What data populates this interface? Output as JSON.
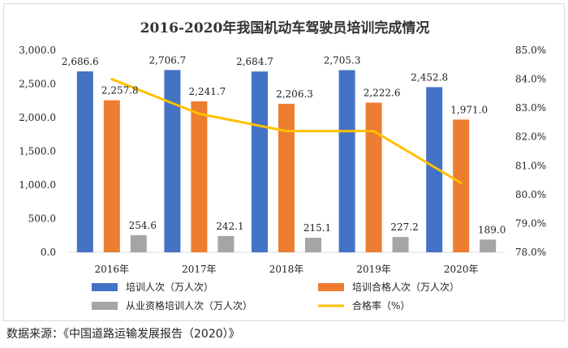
{
  "chart_data": {
    "type": "bar",
    "title": "2016-2020年我国机动车驾驶员培训完成情况",
    "categories": [
      "2016年",
      "2017年",
      "2018年",
      "2019年",
      "2020年"
    ],
    "series": [
      {
        "name": "培训人次（万人次）",
        "type": "bar",
        "axis": "left",
        "color": "#4472c4",
        "values": [
          2686.6,
          2706.7,
          2684.7,
          2705.3,
          2452.8
        ],
        "labels": [
          "2,686.6",
          "2,706.7",
          "2,684.7",
          "2,705.3",
          "2,452.8"
        ]
      },
      {
        "name": "培训合格人次（万人次）",
        "type": "bar",
        "axis": "left",
        "color": "#ed7d31",
        "values": [
          2257.8,
          2241.7,
          2206.3,
          2222.6,
          1971.0
        ],
        "labels": [
          "2,257.8",
          "2,241.7",
          "2,206.3",
          "2,222.6",
          "1,971.0"
        ]
      },
      {
        "name": "从业资格培训人次（万人次）",
        "type": "bar",
        "axis": "left",
        "color": "#a5a5a5",
        "values": [
          254.6,
          242.1,
          215.1,
          227.2,
          189.0
        ],
        "labels": [
          "254.6",
          "242.1",
          "215.1",
          "227.2",
          "189.0"
        ]
      },
      {
        "name": "合格率（%）",
        "type": "line",
        "axis": "right",
        "color": "#ffc000",
        "values": [
          84.0,
          82.8,
          82.2,
          82.2,
          80.4
        ]
      }
    ],
    "left_axis": {
      "min": 0,
      "max": 3000,
      "step": 500,
      "tick_labels": [
        "0.0",
        "500.0",
        "1,000.0",
        "1,500.0",
        "2,000.0",
        "2,500.0",
        "3,000.0"
      ]
    },
    "right_axis": {
      "min": 78,
      "max": 85,
      "step": 1,
      "tick_labels": [
        "78.0%",
        "79.0%",
        "80.0%",
        "81.0%",
        "82.0%",
        "83.0%",
        "84.0%",
        "85.0%"
      ]
    },
    "legend_position": "bottom",
    "grid": false
  },
  "source_note": "数据来源：《中国道路运输发展报告（2020）》"
}
